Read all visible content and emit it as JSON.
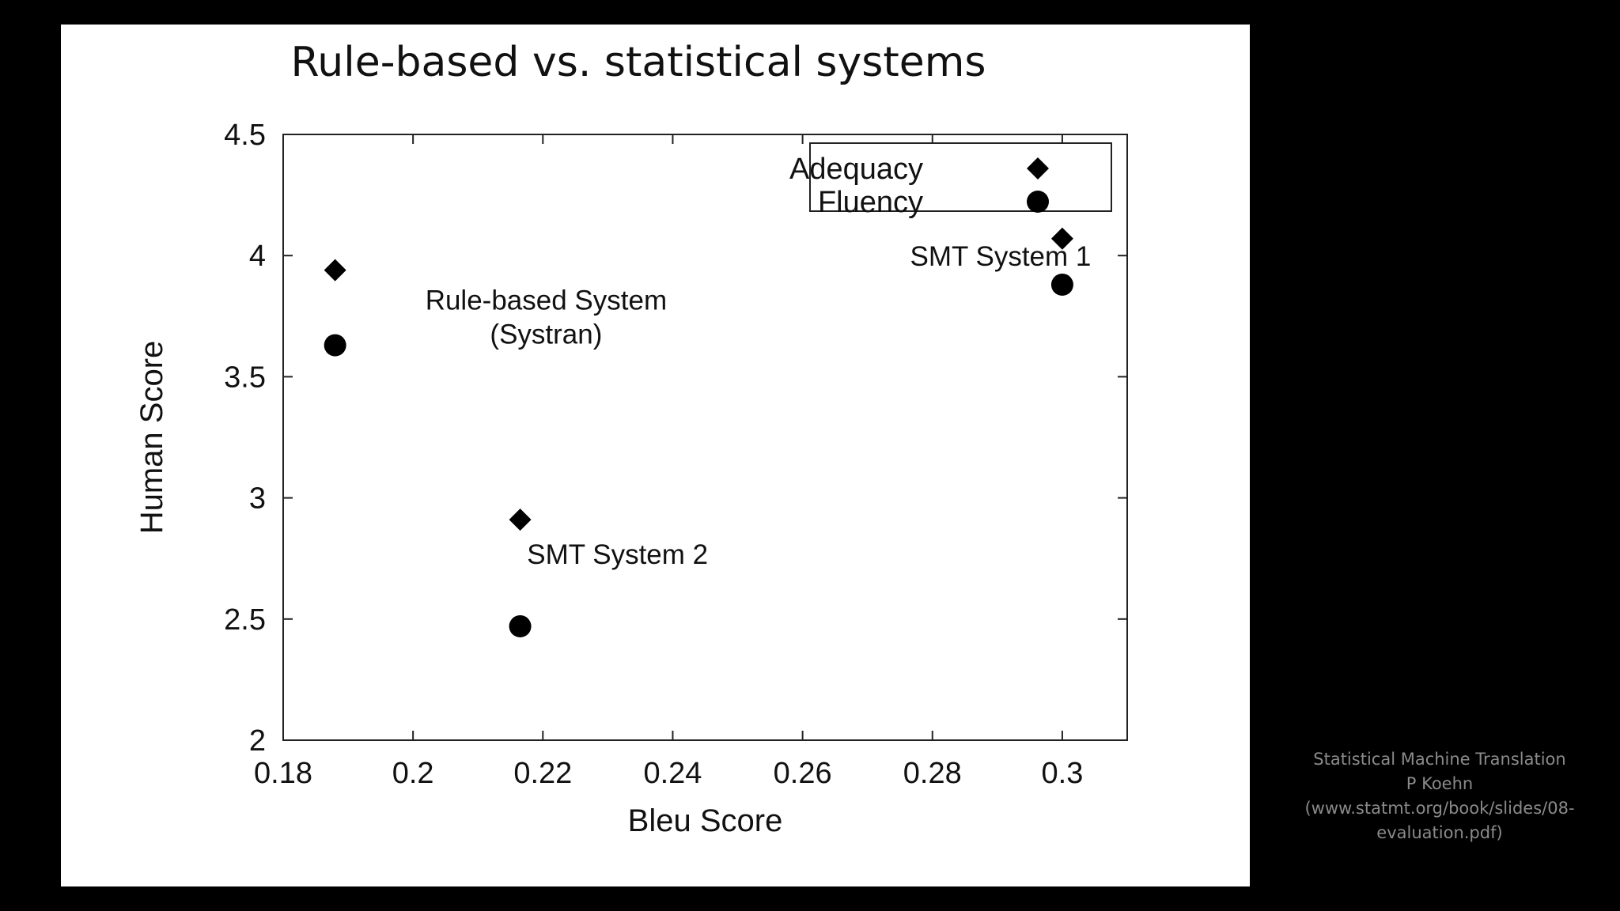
{
  "chart_data": {
    "type": "scatter",
    "title": "Rule-based vs. statistical systems",
    "xlabel": "Bleu Score",
    "ylabel": "Human Score",
    "xlim": [
      0.18,
      0.31
    ],
    "ylim": [
      2,
      4.5
    ],
    "xticks": [
      "0.18",
      "0.2",
      "0.22",
      "0.24",
      "0.26",
      "0.28",
      "0.3"
    ],
    "xtick_values": [
      0.18,
      0.2,
      0.22,
      0.24,
      0.26,
      0.28,
      0.3
    ],
    "yticks": [
      "2",
      "2.5",
      "3",
      "3.5",
      "4",
      "4.5"
    ],
    "ytick_values": [
      2,
      2.5,
      3,
      3.5,
      4,
      4.5
    ],
    "legend_position": "top-right",
    "grid": false,
    "series": [
      {
        "name": "Adequacy",
        "marker": "diamond",
        "points": [
          {
            "x": 0.188,
            "y": 3.94
          },
          {
            "x": 0.2165,
            "y": 2.91
          },
          {
            "x": 0.3,
            "y": 4.07
          }
        ]
      },
      {
        "name": "Fluency",
        "marker": "circle",
        "points": [
          {
            "x": 0.188,
            "y": 3.63
          },
          {
            "x": 0.2165,
            "y": 2.47
          },
          {
            "x": 0.3,
            "y": 3.88
          }
        ]
      }
    ],
    "annotations": [
      {
        "lines": [
          "Rule-based System",
          "(Systran)"
        ],
        "x": 0.2205,
        "y": 3.82
      },
      {
        "lines": [
          "SMT System 2"
        ],
        "x": 0.2315,
        "y": 2.77
      },
      {
        "lines": [
          "SMT System 1"
        ],
        "x": 0.2905,
        "y": 4.0
      }
    ],
    "colors": {
      "marker": "#000000",
      "text": "#111111"
    }
  },
  "caption": {
    "lines": [
      "Statistical Machine Translation",
      "P Koehn",
      "(www.statmt.org/book/slides/08-",
      "evaluation.pdf)"
    ]
  }
}
